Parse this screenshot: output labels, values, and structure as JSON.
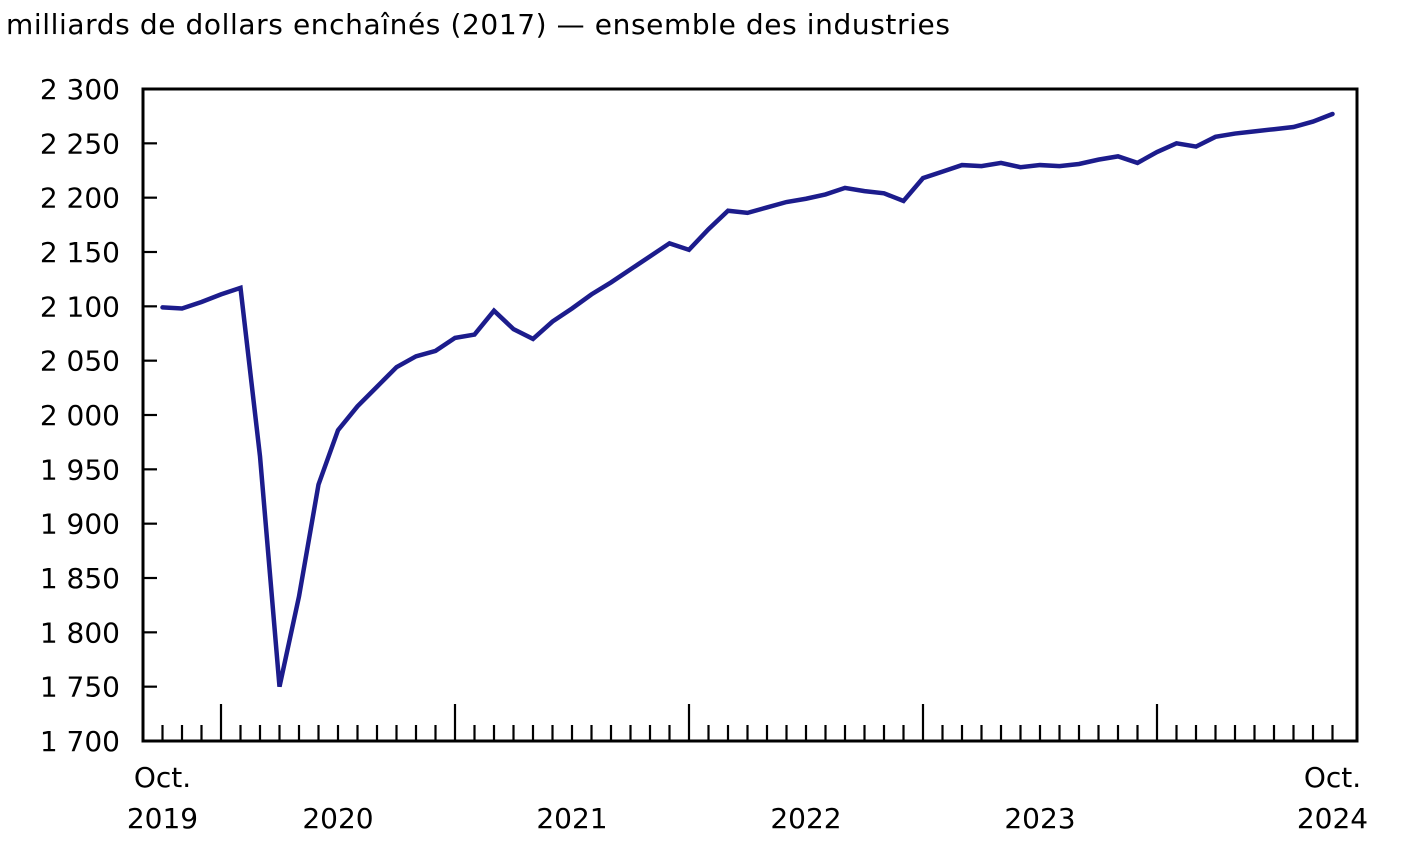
{
  "chart_title": "milliards de dollars enchaînés (2017) — ensemble des industries",
  "chart_data": {
    "type": "line",
    "title": "milliards de dollars enchaînés (2017) — ensemble des industries",
    "unit": "milliards de dollars enchaînés (2017)",
    "series_label": "ensemble des industries",
    "x": [
      "2019-10",
      "2019-11",
      "2019-12",
      "2020-01",
      "2020-02",
      "2020-03",
      "2020-04",
      "2020-05",
      "2020-06",
      "2020-07",
      "2020-08",
      "2020-09",
      "2020-10",
      "2020-11",
      "2020-12",
      "2021-01",
      "2021-02",
      "2021-03",
      "2021-04",
      "2021-05",
      "2021-06",
      "2021-07",
      "2021-08",
      "2021-09",
      "2021-10",
      "2021-11",
      "2021-12",
      "2022-01",
      "2022-02",
      "2022-03",
      "2022-04",
      "2022-05",
      "2022-06",
      "2022-07",
      "2022-08",
      "2022-09",
      "2022-10",
      "2022-11",
      "2022-12",
      "2023-01",
      "2023-02",
      "2023-03",
      "2023-04",
      "2023-05",
      "2023-06",
      "2023-07",
      "2023-08",
      "2023-09",
      "2023-10",
      "2023-11",
      "2023-12",
      "2024-01",
      "2024-02",
      "2024-03",
      "2024-04",
      "2024-05",
      "2024-06",
      "2024-07",
      "2024-08",
      "2024-09",
      "2024-10"
    ],
    "values": [
      2099,
      2098,
      2104,
      2111,
      2117,
      1962,
      1750,
      1833,
      1936,
      1986,
      2008,
      2026,
      2044,
      2054,
      2059,
      2071,
      2074,
      2096,
      2079,
      2070,
      2086,
      2098,
      2111,
      2122,
      2134,
      2146,
      2158,
      2152,
      2171,
      2188,
      2186,
      2191,
      2196,
      2199,
      2203,
      2209,
      2206,
      2204,
      2197,
      2218,
      2224,
      2230,
      2229,
      2232,
      2228,
      2230,
      2229,
      2231,
      2235,
      2238,
      2232,
      2242,
      2250,
      2247,
      2256,
      2259,
      2261,
      2263,
      2265,
      2270,
      2277
    ],
    "ylim": [
      1700,
      2300
    ],
    "ytick_step": 50,
    "y_tick_labels": [
      "2 300",
      "2 250",
      "2 200",
      "2 150",
      "2 100",
      "2 050",
      "2 000",
      "1 950",
      "1 900",
      "1 850",
      "1 800",
      "1 750",
      "1 700"
    ],
    "x_labels": [
      {
        "text": "Oct.",
        "row": 0,
        "index": 0
      },
      {
        "text": "2019",
        "row": 1,
        "index": 0
      },
      {
        "text": "2020",
        "row": 1,
        "index": 9
      },
      {
        "text": "2021",
        "row": 1,
        "index": 21
      },
      {
        "text": "2022",
        "row": 1,
        "index": 33
      },
      {
        "text": "2023",
        "row": 1,
        "index": 45
      },
      {
        "text": "Oct.",
        "row": 0,
        "index": 60
      },
      {
        "text": "2024",
        "row": 1,
        "index": 60
      }
    ],
    "long_tick_indices": [
      3,
      15,
      27,
      39,
      51
    ],
    "line_color": "#1c1c8c",
    "axis_color": "#000000",
    "background_color": "#ffffff",
    "grid": false,
    "legend": false
  }
}
